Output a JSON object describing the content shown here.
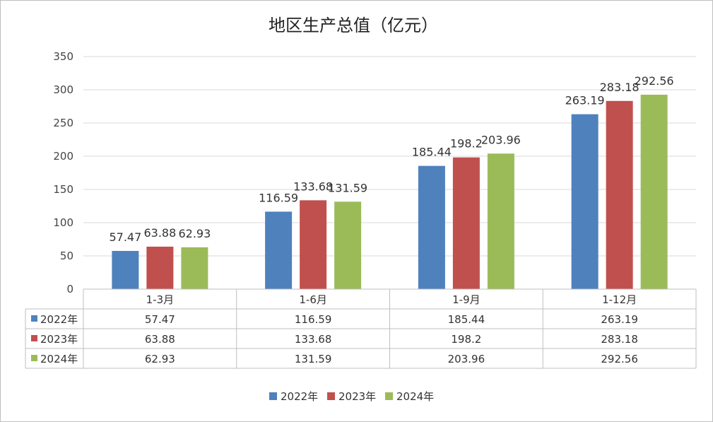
{
  "chart_data": {
    "type": "bar",
    "title": "地区生产总值（亿元）",
    "categories": [
      "1-3月",
      "1-6月",
      "1-9月",
      "1-12月"
    ],
    "series": [
      {
        "name": "2022年",
        "color": "#4f81bd",
        "values": [
          57.47,
          116.59,
          185.44,
          263.19
        ]
      },
      {
        "name": "2023年",
        "color": "#c0504d",
        "values": [
          63.88,
          133.68,
          198.2,
          283.18
        ]
      },
      {
        "name": "2024年",
        "color": "#9bbb59",
        "values": [
          62.93,
          131.59,
          203.96,
          292.56
        ]
      }
    ],
    "ylim": [
      0,
      350
    ],
    "yticks": [
      0,
      50,
      100,
      150,
      200,
      250,
      300,
      350
    ],
    "grid": true,
    "data_table": true,
    "legend": "bottom"
  }
}
